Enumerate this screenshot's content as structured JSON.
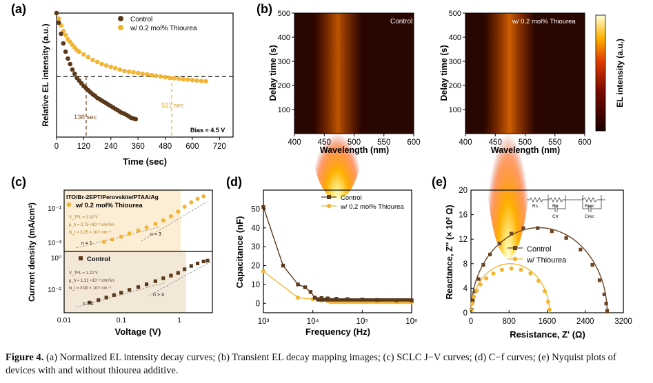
{
  "panel_labels": {
    "a": "(a)",
    "b": "(b)",
    "c": "(c)",
    "d": "(d)",
    "e": "(e)"
  },
  "caption": {
    "figure_label": "Figure 4.",
    "text": " (a) Normalized EL intensity decay curves; (b) Transient EL decay mapping images; (c) SCLC J−V curves; (d) C−f curves; (e) Nyquist plots of devices with and without thiourea additive."
  },
  "colors": {
    "control": "#5b3a1c",
    "thiourea": "#f2b433"
  },
  "chart_data": [
    {
      "id": "a",
      "type": "scatter",
      "xlabel": "Time (sec)",
      "ylabel": "Relative EL intensity (a.u.)",
      "xlim": [
        0,
        780
      ],
      "xticks": [
        0,
        120,
        240,
        360,
        480,
        600,
        720
      ],
      "legend_position": "top-right",
      "annotations": {
        "control_time": "138 sec",
        "thiourea_time": "511 sec",
        "bias": "Bias = 4.5 V"
      },
      "series": [
        {
          "name": "Control",
          "x": [
            0,
            10,
            20,
            30,
            40,
            50,
            60,
            70,
            80,
            90,
            100,
            110,
            120,
            130,
            140,
            150,
            160,
            170,
            180,
            190,
            200,
            210,
            220,
            230,
            240,
            250,
            260,
            270,
            280,
            290,
            300,
            310,
            320,
            330,
            340,
            350
          ],
          "y": [
            1.0,
            0.93,
            0.85,
            0.78,
            0.72,
            0.67,
            0.63,
            0.59,
            0.56,
            0.53,
            0.51,
            0.49,
            0.47,
            0.455,
            0.44,
            0.425,
            0.41,
            0.4,
            0.385,
            0.375,
            0.365,
            0.355,
            0.345,
            0.335,
            0.325,
            0.315,
            0.305,
            0.295,
            0.285,
            0.275,
            0.27,
            0.26,
            0.25,
            0.24,
            0.235,
            0.23
          ]
        },
        {
          "name": "w/ 0.2 mol% Thiourea",
          "x": [
            0,
            10,
            20,
            30,
            40,
            50,
            60,
            70,
            80,
            90,
            100,
            120,
            140,
            160,
            180,
            200,
            220,
            240,
            260,
            280,
            300,
            320,
            340,
            360,
            380,
            400,
            420,
            440,
            460,
            480,
            500,
            520,
            540,
            560,
            580,
            600,
            620,
            640,
            660
          ],
          "y": [
            1.0,
            0.96,
            0.91,
            0.87,
            0.84,
            0.81,
            0.79,
            0.77,
            0.75,
            0.73,
            0.72,
            0.7,
            0.68,
            0.66,
            0.645,
            0.63,
            0.62,
            0.61,
            0.6,
            0.59,
            0.58,
            0.575,
            0.57,
            0.565,
            0.56,
            0.555,
            0.55,
            0.545,
            0.54,
            0.535,
            0.53,
            0.527,
            0.524,
            0.52,
            0.517,
            0.514,
            0.511,
            0.508,
            0.505
          ]
        }
      ]
    },
    {
      "id": "b",
      "type": "heatmap",
      "colorbar_label": "EL intensity (a.u.)",
      "maps": [
        {
          "name": "Control",
          "xlabel": "Wavelength (nm)",
          "ylabel": "Delay time (s)",
          "xlim": [
            400,
            600
          ],
          "ylim": [
            0,
            500
          ],
          "xticks": [
            400,
            450,
            500,
            550,
            600
          ],
          "yticks": [
            100,
            200,
            300,
            400,
            500
          ],
          "peak_nm": 470,
          "bright_until_s": 230
        },
        {
          "name": "w/ 0.2 mol% Thiourea",
          "xlabel": "Wavelength (nm)",
          "ylabel": "Delay time (s)",
          "xlim": [
            400,
            600
          ],
          "ylim": [
            0,
            500
          ],
          "xticks": [
            400,
            450,
            500,
            550,
            600
          ],
          "yticks": [
            100,
            200,
            300,
            400,
            500
          ],
          "peak_nm": 470,
          "bright_until_s": 440
        }
      ]
    },
    {
      "id": "c",
      "type": "scatter",
      "xlabel": "Voltage (V)",
      "ylabel": "Current density (mA/cm²)",
      "xscale": "log",
      "yscale": "log",
      "xlim": [
        0.01,
        4
      ],
      "xticks": [
        "0.01",
        "0.1",
        "1"
      ],
      "top": {
        "device_label": "ITO/Br-2EPT/Perovskite/PTAA/Ag",
        "series_name": "w/ 0.2 mol% Thiourea",
        "params": [
          "V_TFL = 1.02 V",
          "μ_h = 2.75 ×10⁻³ cm²/Vs",
          "N_t = 3.25 × 10¹⁵ cm⁻³"
        ],
        "fit_labels": [
          "n = 1",
          "n > 3"
        ],
        "yticks": [
          "10⁻³",
          "10⁻¹"
        ],
        "ylim": [
          0.0004,
          0.25
        ],
        "x": [
          0.05,
          0.07,
          0.1,
          0.14,
          0.2,
          0.28,
          0.4,
          0.55,
          0.75,
          1.0,
          1.3,
          1.7,
          2.2,
          2.8
        ],
        "y": [
          0.0011,
          0.0014,
          0.0019,
          0.0026,
          0.0036,
          0.005,
          0.0072,
          0.0105,
          0.016,
          0.026,
          0.044,
          0.07,
          0.1,
          0.13
        ]
      },
      "bottom": {
        "series_name": "Control",
        "params": [
          "V_TFL = 1.22 V",
          "μ_h = 1.21 ×10⁻³ cm²/Vs",
          "N_t = 3.90 × 10¹⁵ cm⁻³"
        ],
        "fit_labels": [
          "n = 1",
          "n > 3"
        ],
        "yticks": [
          "10⁻²",
          "10⁰"
        ],
        "ylim": [
          0.001,
          2
        ],
        "x": [
          0.028,
          0.04,
          0.055,
          0.075,
          0.1,
          0.14,
          0.2,
          0.28,
          0.4,
          0.55,
          0.75,
          1.0,
          1.3,
          1.7,
          2.2,
          2.8,
          3.3
        ],
        "y": [
          0.0035,
          0.0048,
          0.0066,
          0.009,
          0.012,
          0.017,
          0.024,
          0.034,
          0.05,
          0.072,
          0.1,
          0.14,
          0.22,
          0.33,
          0.45,
          0.58,
          0.64
        ]
      }
    },
    {
      "id": "d",
      "type": "line",
      "xlabel": "Frequency (Hz)",
      "ylabel": "Capacitance (nF)",
      "xscale": "log",
      "xlim": [
        1000,
        1000000
      ],
      "ylim": [
        -5,
        60
      ],
      "xticks": [
        "10³",
        "10⁴",
        "10⁵",
        "10⁶"
      ],
      "yticks": [
        0,
        10,
        20,
        30,
        40,
        50
      ],
      "legend_position": "top-right",
      "series": [
        {
          "name": "Control",
          "x": [
            1000,
            2500,
            5000,
            7000,
            9000,
            11000,
            15000,
            20000,
            30000,
            50000,
            100000,
            200000,
            500000,
            1000000
          ],
          "y": [
            51,
            20,
            10,
            8.5,
            6,
            3,
            2.8,
            2.6,
            2.4,
            2.2,
            2.0,
            1.8,
            1.6,
            1.5
          ]
        },
        {
          "name": "w/ 0.2 mol% Thiourea",
          "x": [
            1000,
            5000,
            10000,
            15000,
            20000,
            30000,
            50000,
            100000,
            200000,
            500000,
            1000000
          ],
          "y": [
            17,
            3,
            2.2,
            1.5,
            1.2,
            1.0,
            0.9,
            0.8,
            0.7,
            0.6,
            0.5
          ]
        }
      ]
    },
    {
      "id": "e",
      "type": "scatter",
      "xlabel": "Resistance, Z' (Ω)",
      "ylabel": "Reactance, Z'' (× 10² Ω)",
      "xlim": [
        0,
        3200
      ],
      "ylim": [
        0,
        20
      ],
      "xticks": [
        0,
        800,
        1600,
        2400,
        3200
      ],
      "yticks": [
        0,
        4,
        8,
        12,
        16,
        20
      ],
      "legend_position": "center",
      "circuit_labels": [
        "Rs",
        "Rtr",
        "Ctr",
        "Rrec",
        "Crec"
      ],
      "series": [
        {
          "name": "Control",
          "x": [
            15,
            40,
            80,
            160,
            260,
            400,
            600,
            850,
            1100,
            1400,
            1700,
            2000,
            2300,
            2550,
            2700,
            2800,
            2840,
            2860
          ],
          "y": [
            0.5,
            2.0,
            3.5,
            5.5,
            7.8,
            9.5,
            11.3,
            12.9,
            13.8,
            13.8,
            13.3,
            12.2,
            10.3,
            7.8,
            5.3,
            3.0,
            1.5,
            0.3
          ]
        },
        {
          "name": "w/ Thiourea",
          "x": [
            10,
            30,
            60,
            120,
            200,
            320,
            470,
            650,
            850,
            1050,
            1250,
            1420,
            1550,
            1620,
            1650
          ],
          "y": [
            0.4,
            1.5,
            2.6,
            3.6,
            4.6,
            5.6,
            6.4,
            7.0,
            7.2,
            7.0,
            6.4,
            5.2,
            3.5,
            1.8,
            0.5
          ]
        }
      ]
    }
  ]
}
